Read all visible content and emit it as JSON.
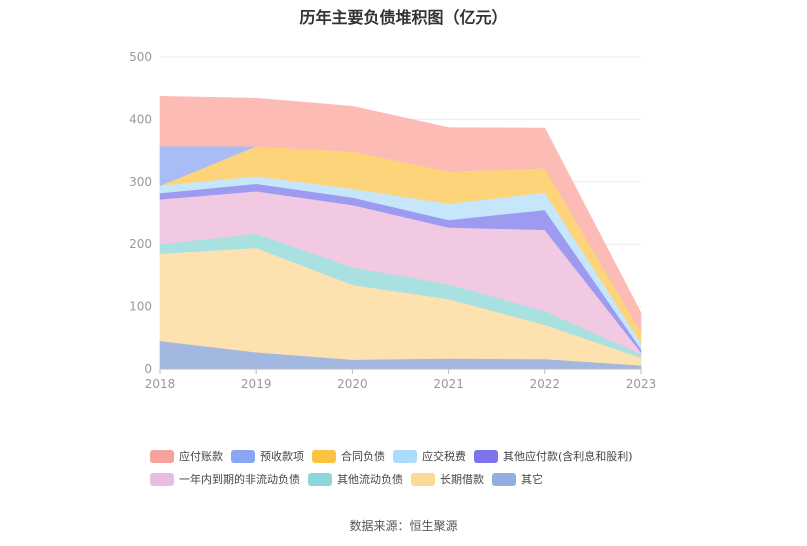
{
  "chart_data": {
    "type": "area",
    "stacked": true,
    "title": "历年主要负债堆积图（亿元）",
    "x": [
      "2018",
      "2019",
      "2020",
      "2021",
      "2022",
      "2023"
    ],
    "ylim": [
      0,
      500
    ],
    "yticks": [
      0,
      100,
      200,
      300,
      400,
      500
    ],
    "grid": true,
    "legend_position": "bottom",
    "series": [
      {
        "name": "其它",
        "color": "#a3b8e0",
        "values": [
          45,
          27,
          15,
          17,
          16,
          6
        ]
      },
      {
        "name": "长期借款",
        "color": "#fde2b0",
        "values": [
          140,
          167,
          120,
          95,
          55,
          12
        ]
      },
      {
        "name": "其他流动负债",
        "color": "#a9e1e1",
        "values": [
          15,
          23,
          28,
          24,
          22,
          6
        ]
      },
      {
        "name": "一年内到期的非流动负债",
        "color": "#f1c9e2",
        "values": [
          72,
          68,
          100,
          91,
          130,
          3
        ]
      },
      {
        "name": "其他应付款(含利息和股利)",
        "color": "#9d9bf0",
        "values": [
          10,
          12,
          12,
          12,
          32,
          5
        ]
      },
      {
        "name": "应交税费",
        "color": "#c6e6fb",
        "values": [
          12,
          12,
          14,
          26,
          28,
          10
        ]
      },
      {
        "name": "合同负债",
        "color": "#fed47a",
        "values": [
          0,
          48,
          60,
          52,
          39,
          18
        ]
      },
      {
        "name": "预收款项",
        "color": "#a8bcf5",
        "values": [
          63,
          0,
          0,
          0,
          0,
          0
        ]
      },
      {
        "name": "应付账款",
        "color": "#fdbbb5",
        "values": [
          80,
          77,
          72,
          70,
          64,
          30
        ]
      }
    ]
  },
  "legend_order": [
    8,
    7,
    6,
    5,
    4,
    3,
    2,
    1,
    0
  ],
  "legend_colors": [
    "#f7a29a",
    "#8aa6f2",
    "#fcc244",
    "#a9ddfb",
    "#7b74ea",
    "#ecbce0",
    "#8ed6d6",
    "#fcd89a",
    "#93aee0"
  ],
  "source": "数据来源：恒生聚源"
}
